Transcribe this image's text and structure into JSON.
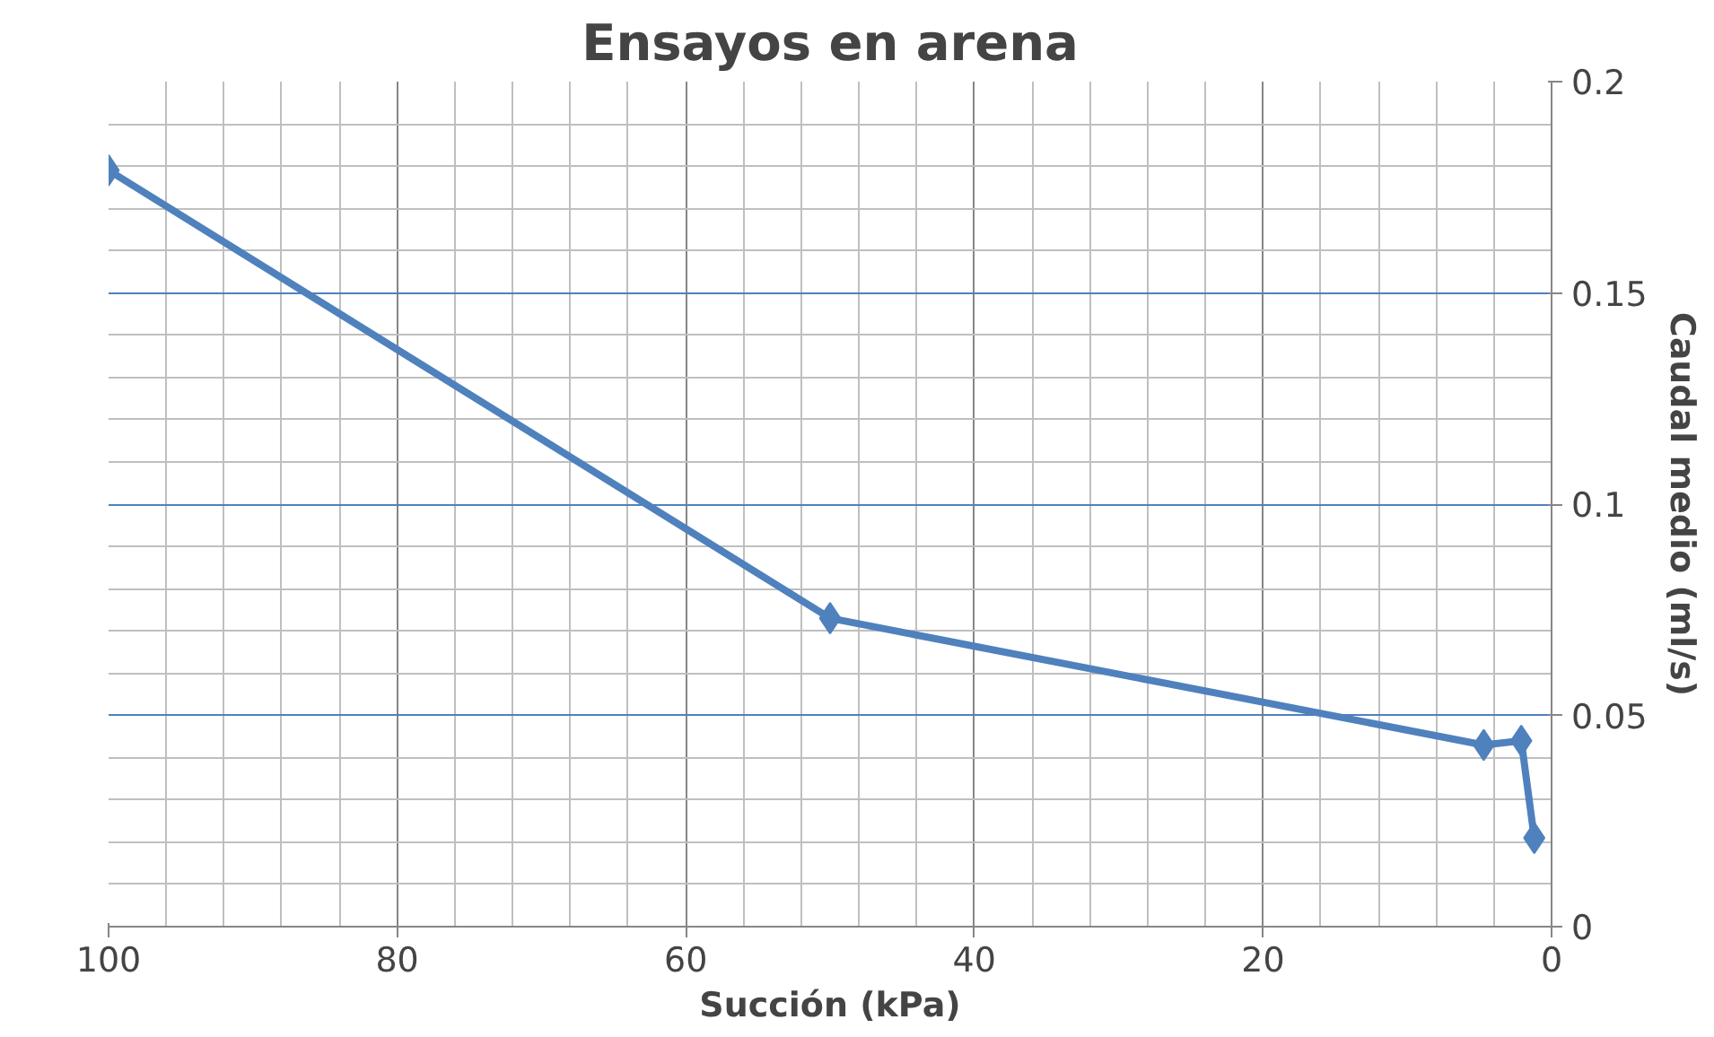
{
  "chart_data": {
    "type": "line",
    "title": "Ensayos en arena",
    "xlabel": "Succión (kPa)",
    "ylabel": "Caudal medio (ml/s)",
    "x": [
      100,
      50,
      4.7,
      2.1,
      1.2
    ],
    "series": [
      {
        "color": "#4f81bd",
        "values": [
          0.179,
          0.073,
          0.043,
          0.044,
          0.021
        ]
      }
    ],
    "xlim": [
      100,
      0
    ],
    "ylim": [
      0,
      0.2
    ],
    "xticks": [
      100,
      80,
      60,
      40,
      20,
      0
    ],
    "yticks": [
      0,
      0.05,
      0.1,
      0.15,
      0.2
    ],
    "grid": true,
    "marker": "diamond",
    "line_style": "solid"
  }
}
